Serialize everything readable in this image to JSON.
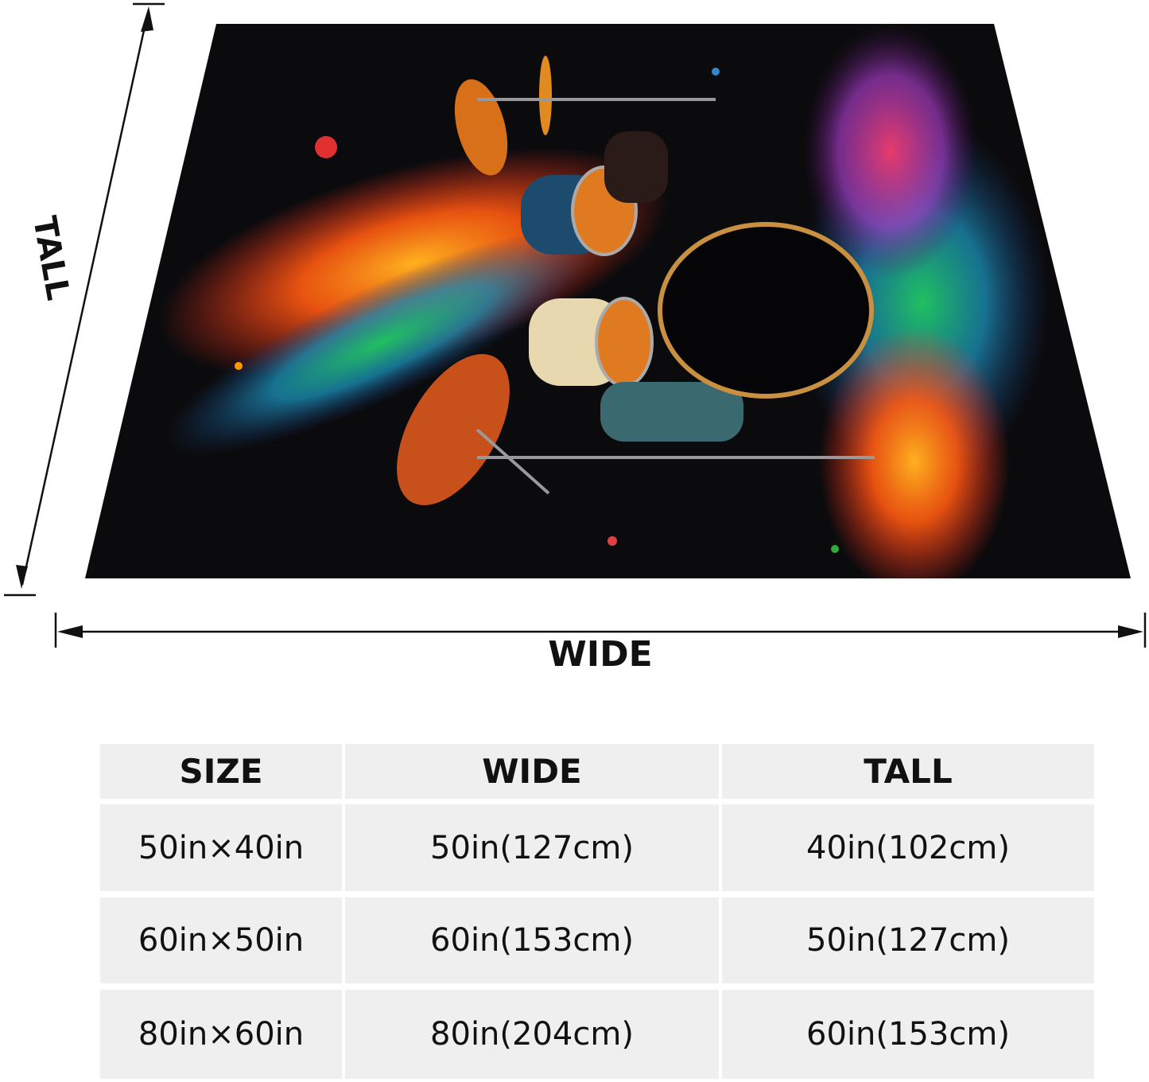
{
  "dimension_labels": {
    "tall": "TALL",
    "wide": "WIDE"
  },
  "table": {
    "header": [
      "SIZE",
      "WIDE",
      "TALL"
    ],
    "rows": [
      [
        "50in×40in",
        "50in(127cm)",
        "40in(102cm)"
      ],
      [
        "60in×50in",
        "60in(153cm)",
        "50in(127cm)"
      ],
      [
        "80in×60in",
        "80in(204cm)",
        "60in(153cm)"
      ]
    ]
  }
}
